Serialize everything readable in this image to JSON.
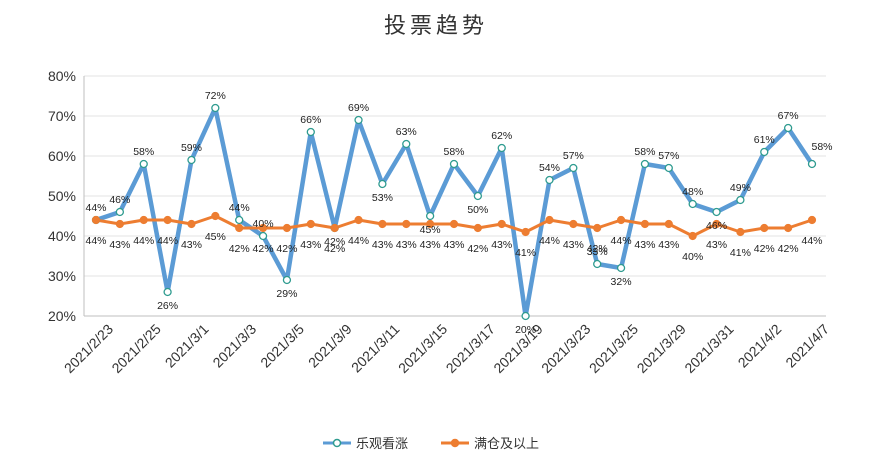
{
  "chart_data": {
    "type": "line",
    "title": "投票趋势",
    "xlabel": "",
    "ylabel": "",
    "ylim": [
      20,
      80
    ],
    "yticks": [
      "20%",
      "30%",
      "40%",
      "50%",
      "60%",
      "70%",
      "80%"
    ],
    "x_tick_labels": [
      "2021/2/23",
      "2021/2/25",
      "2021/3/1",
      "2021/3/3",
      "2021/3/5",
      "2021/3/9",
      "2021/3/11",
      "2021/3/15",
      "2021/3/17",
      "2021/3/19",
      "2021/3/23",
      "2021/3/25",
      "2021/3/29",
      "2021/3/31",
      "2021/4/2",
      "2021/4/7"
    ],
    "legend_position": "bottom",
    "series": [
      {
        "name": "乐观看涨",
        "color": "#5b9bd5",
        "values": [
          44,
          46,
          58,
          26,
          59,
          72,
          44,
          40,
          29,
          66,
          42,
          69,
          53,
          63,
          45,
          58,
          50,
          62,
          20,
          54,
          57,
          33,
          32,
          58,
          57,
          48,
          46,
          49,
          61,
          67,
          58
        ],
        "labels": [
          "44%",
          "46%",
          "58%",
          "26%",
          "59%",
          "72%",
          "44%",
          "40%",
          "29%",
          "66%",
          "42%",
          "69%",
          "53%",
          "63%",
          "45%",
          "58%",
          "50%",
          "62%",
          "20%",
          "54%",
          "57%",
          "33%",
          "32%",
          "58%",
          "57%",
          "48%",
          "46%",
          "49%",
          "61%",
          "67%",
          "58%"
        ]
      },
      {
        "name": "满仓及以上",
        "color": "#ed7d31",
        "values": [
          44,
          43,
          44,
          44,
          43,
          45,
          42,
          42,
          42,
          43,
          42,
          44,
          43,
          43,
          43,
          43,
          42,
          43,
          41,
          44,
          43,
          42,
          44,
          43,
          43,
          40,
          43,
          41,
          42,
          42,
          44
        ],
        "labels": [
          "44%",
          "43%",
          "44%",
          "44%",
          "43%",
          "45%",
          "42%",
          "42%",
          "42%",
          "43%",
          "42%",
          "44%",
          "43%",
          "43%",
          "43%",
          "43%",
          "42%",
          "43%",
          "41%",
          "44%",
          "43%",
          "42%",
          "44%",
          "43%",
          "43%",
          "40%",
          "43%",
          "41%",
          "42%",
          "42%",
          "44%"
        ]
      }
    ]
  }
}
